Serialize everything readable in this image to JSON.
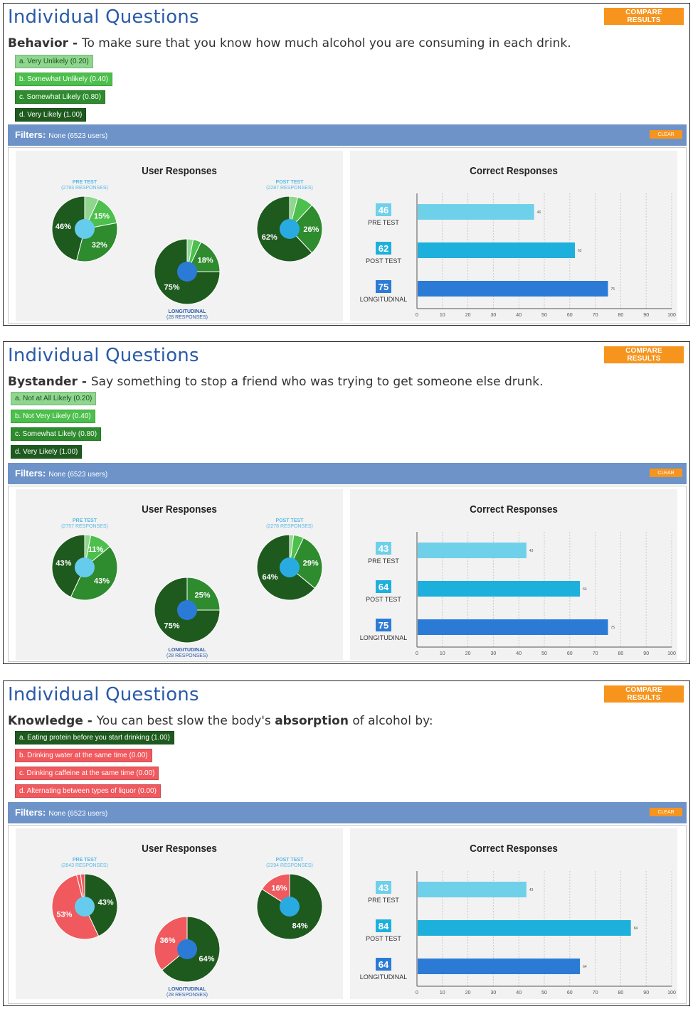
{
  "panels": [
    {
      "title": "Individual Questions",
      "compare_label": "COMPARE RESULTS",
      "question_category": "Behavior",
      "question_sep": " - ",
      "question_parts": [
        {
          "text": "To make sure that you know how much alcohol you are consuming in each drink.",
          "bold": false
        }
      ],
      "options": [
        {
          "label": "a. Very Unlikely (0.20)",
          "color": "#8fd68f",
          "text_color": "#1f4f1f"
        },
        {
          "label": "b. Somewhat Unlikely (0.40)",
          "color": "#4cbf4c",
          "text_color": "#ffffff"
        },
        {
          "label": "c. Somewhat Likely (0.80)",
          "color": "#2e8b2e",
          "text_color": "#ffffff"
        },
        {
          "label": "d. Very Likely (1.00)",
          "color": "#1e5a1e",
          "text_color": "#ffffff"
        }
      ],
      "filters": {
        "label": "Filters:",
        "value": "None (6523 users)",
        "clear_label": "CLEAR"
      },
      "user_title": "User Responses",
      "correct_title": "Correct Responses",
      "pies": [
        {
          "name": "PRE TEST",
          "sub": "(2793 RESPONSES)",
          "label_color": "#5ab9e6",
          "center_color": "#66ccee",
          "slices": [
            {
              "value": 7,
              "color": "#8fd68f",
              "label": ""
            },
            {
              "value": 15,
              "color": "#4cbf4c",
              "label": "15%"
            },
            {
              "value": 32,
              "color": "#2e8b2e",
              "label": "32%"
            },
            {
              "value": 46,
              "color": "#1e5a1e",
              "label": "46%"
            }
          ]
        },
        {
          "name": "POST TEST",
          "sub": "(2287 RESPONSES)",
          "label_color": "#5ab9e6",
          "center_color": "#29abe2",
          "slices": [
            {
              "value": 4,
              "color": "#8fd68f",
              "label": ""
            },
            {
              "value": 8,
              "color": "#4cbf4c",
              "label": ""
            },
            {
              "value": 26,
              "color": "#2e8b2e",
              "label": "26%"
            },
            {
              "value": 62,
              "color": "#1e5a1e",
              "label": "62%"
            }
          ]
        },
        {
          "name": "LONGITUDINAL",
          "sub": "(28 RESPONSES)",
          "label_color": "#2a5ba8",
          "center_color": "#2b7bd6",
          "slices": [
            {
              "value": 3,
              "color": "#8fd68f",
              "label": ""
            },
            {
              "value": 4,
              "color": "#4cbf4c",
              "label": ""
            },
            {
              "value": 18,
              "color": "#2e8b2e",
              "label": "18%"
            },
            {
              "value": 75,
              "color": "#1e5a1e",
              "label": "75%"
            }
          ]
        }
      ],
      "chart_data": {
        "type": "bar",
        "categories": [
          "PRE TEST",
          "POST TEST",
          "LONGITUDINAL"
        ],
        "values": [
          46,
          62,
          75
        ],
        "colors": [
          "#6fd0ea",
          "#1eb0dc",
          "#2b7bd6"
        ],
        "xlim": [
          0,
          100
        ],
        "ticks": [
          0,
          10,
          20,
          30,
          40,
          50,
          60,
          70,
          80,
          90,
          100
        ]
      }
    },
    {
      "title": "Individual Questions",
      "compare_label": "COMPARE RESULTS",
      "question_category": "Bystander",
      "question_sep": " - ",
      "question_parts": [
        {
          "text": "Say something to stop a friend who was trying to get someone else drunk.",
          "bold": false
        }
      ],
      "options": [
        {
          "label": "a. Not at All Likely (0.20)",
          "color": "#8fd68f",
          "text_color": "#1f4f1f"
        },
        {
          "label": "b. Not Very Likely (0.40)",
          "color": "#4cbf4c",
          "text_color": "#ffffff"
        },
        {
          "label": "c. Somewhat Likely (0.80)",
          "color": "#2e8b2e",
          "text_color": "#ffffff"
        },
        {
          "label": "d. Very Likely (1.00)",
          "color": "#1e5a1e",
          "text_color": "#ffffff"
        }
      ],
      "filters": {
        "label": "Filters:",
        "value": "None (6523 users)",
        "clear_label": "CLEAR"
      },
      "user_title": "User Responses",
      "correct_title": "Correct Responses",
      "pies": [
        {
          "name": "PRE TEST",
          "sub": "(2757 RESPONSES)",
          "label_color": "#5ab9e6",
          "center_color": "#66ccee",
          "slices": [
            {
              "value": 3,
              "color": "#8fd68f",
              "label": ""
            },
            {
              "value": 11,
              "color": "#4cbf4c",
              "label": "11%"
            },
            {
              "value": 43,
              "color": "#2e8b2e",
              "label": "43%"
            },
            {
              "value": 43,
              "color": "#1e5a1e",
              "label": "43%"
            }
          ]
        },
        {
          "name": "POST TEST",
          "sub": "(2278 RESPONSES)",
          "label_color": "#5ab9e6",
          "center_color": "#29abe2",
          "slices": [
            {
              "value": 2,
              "color": "#8fd68f",
              "label": ""
            },
            {
              "value": 5,
              "color": "#4cbf4c",
              "label": ""
            },
            {
              "value": 29,
              "color": "#2e8b2e",
              "label": "29%"
            },
            {
              "value": 64,
              "color": "#1e5a1e",
              "label": "64%"
            }
          ]
        },
        {
          "name": "LONGITUDINAL",
          "sub": "(28 RESPONSES)",
          "label_color": "#2a5ba8",
          "center_color": "#2b7bd6",
          "slices": [
            {
              "value": 25,
              "color": "#2e8b2e",
              "label": "25%"
            },
            {
              "value": 75,
              "color": "#1e5a1e",
              "label": "75%"
            }
          ]
        }
      ],
      "chart_data": {
        "type": "bar",
        "categories": [
          "PRE TEST",
          "POST TEST",
          "LONGITUDINAL"
        ],
        "values": [
          43,
          64,
          75
        ],
        "colors": [
          "#6fd0ea",
          "#1eb0dc",
          "#2b7bd6"
        ],
        "xlim": [
          0,
          100
        ],
        "ticks": [
          0,
          10,
          20,
          30,
          40,
          50,
          60,
          70,
          80,
          90,
          100
        ]
      }
    },
    {
      "title": "Individual Questions",
      "compare_label": "COMPARE RESULTS",
      "question_category": "Knowledge",
      "question_sep": " - ",
      "question_parts": [
        {
          "text": "You can best slow the body's ",
          "bold": false
        },
        {
          "text": "absorption",
          "bold": true
        },
        {
          "text": " of alcohol by:",
          "bold": false
        }
      ],
      "options": [
        {
          "label": "a. Eating protein before you start drinking (1.00)",
          "color": "#1e5a1e",
          "text_color": "#ffffff"
        },
        {
          "label": "b. Drinking water at the same time (0.00)",
          "color": "#f0595e",
          "text_color": "#ffffff"
        },
        {
          "label": "c. Drinking caffeine at the same time (0.00)",
          "color": "#f0595e",
          "text_color": "#ffffff"
        },
        {
          "label": "d. Alternating between types of liquor (0.00)",
          "color": "#f0595e",
          "text_color": "#ffffff"
        }
      ],
      "filters": {
        "label": "Filters:",
        "value": "None (6523 users)",
        "clear_label": "CLEAR"
      },
      "user_title": "User Responses",
      "correct_title": "Correct Responses",
      "pies": [
        {
          "name": "PRE TEST",
          "sub": "(2843 RESPONSES)",
          "label_color": "#5ab9e6",
          "center_color": "#66ccee",
          "slices": [
            {
              "value": 43,
              "color": "#1e5a1e",
              "label": "43%"
            },
            {
              "value": 53,
              "color": "#f0595e",
              "label": "53%"
            },
            {
              "value": 2,
              "color": "#f0595e",
              "label": ""
            },
            {
              "value": 2,
              "color": "#f0595e",
              "label": ""
            }
          ]
        },
        {
          "name": "POST TEST",
          "sub": "(2294 RESPONSES)",
          "label_color": "#5ab9e6",
          "center_color": "#29abe2",
          "slices": [
            {
              "value": 84,
              "color": "#1e5a1e",
              "label": "84%"
            },
            {
              "value": 16,
              "color": "#f0595e",
              "label": "16%"
            }
          ]
        },
        {
          "name": "LONGITUDINAL",
          "sub": "(28 RESPONSES)",
          "label_color": "#2a5ba8",
          "center_color": "#2b7bd6",
          "slices": [
            {
              "value": 64,
              "color": "#1e5a1e",
              "label": "64%"
            },
            {
              "value": 36,
              "color": "#f0595e",
              "label": "36%"
            }
          ]
        }
      ],
      "chart_data": {
        "type": "bar",
        "categories": [
          "PRE TEST",
          "POST TEST",
          "LONGITUDINAL"
        ],
        "values": [
          43,
          84,
          64
        ],
        "colors": [
          "#6fd0ea",
          "#1eb0dc",
          "#2b7bd6"
        ],
        "xlim": [
          0,
          100
        ],
        "ticks": [
          0,
          10,
          20,
          30,
          40,
          50,
          60,
          70,
          80,
          90,
          100
        ]
      }
    }
  ]
}
